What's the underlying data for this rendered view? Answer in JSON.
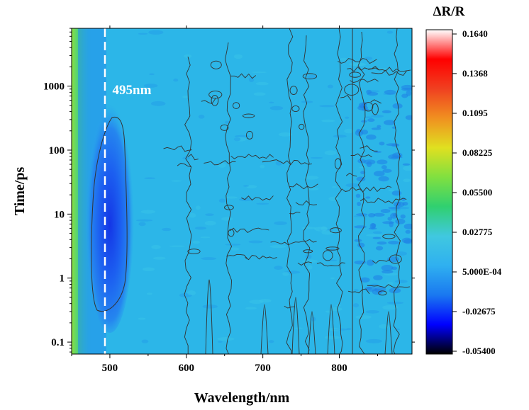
{
  "chart_data": {
    "type": "heatmap",
    "title": "",
    "xlabel": "Wavelength/nm",
    "ylabel": "Time/ps",
    "xlim": [
      450,
      895
    ],
    "ylim": [
      0.065,
      8000
    ],
    "y_scale": "log",
    "x_ticks": [
      {
        "value": 500,
        "label": "500"
      },
      {
        "value": 600,
        "label": "600"
      },
      {
        "value": 700,
        "label": "700"
      },
      {
        "value": 800,
        "label": "800"
      }
    ],
    "y_ticks": [
      {
        "value": 0.1,
        "label": "0.1"
      },
      {
        "value": 1,
        "label": "1"
      },
      {
        "value": 10,
        "label": "10"
      },
      {
        "value": 100,
        "label": "100"
      },
      {
        "value": 1000,
        "label": "1000"
      }
    ],
    "annotation": {
      "text": "495nm",
      "x": 495
    },
    "colorbar": {
      "title": "ΔR/R",
      "min": -0.054,
      "max": 0.164,
      "levels": [
        {
          "value": 0.164,
          "label": "0.1640"
        },
        {
          "value": 0.1368,
          "label": "0.1368"
        },
        {
          "value": 0.1095,
          "label": "0.1095"
        },
        {
          "value": 0.08225,
          "label": "0.08225"
        },
        {
          "value": 0.055,
          "label": "0.05500"
        },
        {
          "value": 0.02775,
          "label": "0.02775"
        },
        {
          "value": 0.0005,
          "label": "5.000E-04"
        },
        {
          "value": -0.02675,
          "label": "-0.02675"
        },
        {
          "value": -0.054,
          "label": "-0.05400"
        }
      ],
      "colors": [
        "#000000",
        "#0000ff",
        "#1a78f0",
        "#2fb0f0",
        "#40c8e0",
        "#30d070",
        "#80e040",
        "#e0e020",
        "#f09020",
        "#f04020",
        "#ff0000",
        "#ffffff"
      ]
    },
    "features": {
      "background_value": -0.01,
      "bleach_band": {
        "center": 507,
        "width_nm": 38,
        "t_start": 0.3,
        "t_end": 300,
        "peak_value": -0.05
      },
      "edge_band_left": {
        "x_max": 470,
        "value": 0.04
      },
      "vertical_lines_nm": [
        497,
        820
      ]
    }
  }
}
